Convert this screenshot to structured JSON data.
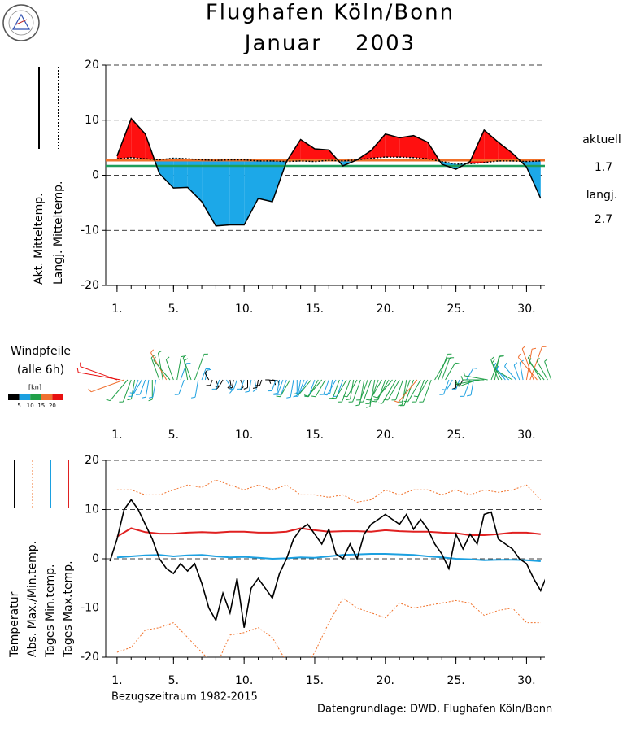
{
  "header": {
    "title": "Flughafen Köln/Bonn",
    "subtitle": "Januar    2003"
  },
  "footer": {
    "period": "Bezugszeitraum 1982-2015",
    "source": "Datengrundlage: DWD, Flughafen Köln/Bonn"
  },
  "chart_data": [
    {
      "type": "area_difference",
      "x": [
        1,
        2,
        3,
        4,
        5,
        6,
        7,
        8,
        9,
        10,
        11,
        12,
        13,
        14,
        15,
        16,
        17,
        18,
        19,
        20,
        21,
        22,
        23,
        24,
        25,
        26,
        27,
        28,
        29,
        30,
        31
      ],
      "series": [
        {
          "name": "Akt. Mitteltemp.",
          "color": "#000000",
          "values": [
            3.5,
            10.3,
            7.5,
            0.3,
            -2.3,
            -2.2,
            -4.8,
            -9.2,
            -9.0,
            -9.0,
            -4.2,
            -4.8,
            2.5,
            6.5,
            4.8,
            4.6,
            1.7,
            2.8,
            4.5,
            7.5,
            6.8,
            7.2,
            6.0,
            2.0,
            1.1,
            2.5,
            8.2,
            6.0,
            4.0,
            1.5,
            -4.2
          ]
        },
        {
          "name": "Langj. Mitteltemp.",
          "color": "#000000",
          "values": [
            3.0,
            3.2,
            3.0,
            2.8,
            3.1,
            3.0,
            2.8,
            2.7,
            2.8,
            2.8,
            2.6,
            2.6,
            2.5,
            2.6,
            2.5,
            2.7,
            2.6,
            2.8,
            3.1,
            3.3,
            3.3,
            3.2,
            3.0,
            2.5,
            2.0,
            2.1,
            2.3,
            2.6,
            2.6,
            2.5,
            2.6
          ]
        }
      ],
      "above_color": "#ff1010",
      "below_color": "#1ca8e8",
      "reference_lines": [
        {
          "name": "aktuell",
          "value": 1.7,
          "color": "#1f9e5a"
        },
        {
          "name": "langj.",
          "value": 2.7,
          "color": "#f07028"
        }
      ],
      "xlim": [
        0.2,
        31.3
      ],
      "xticks": [
        {
          "value": 1,
          "label": "1."
        },
        {
          "value": 5,
          "label": "5."
        },
        {
          "value": 10,
          "label": "10."
        },
        {
          "value": 15,
          "label": "15."
        },
        {
          "value": 20,
          "label": "20."
        },
        {
          "value": 25,
          "label": "25."
        },
        {
          "value": 30,
          "label": "30."
        }
      ],
      "ylim": [
        -20,
        20
      ],
      "yticks": [
        -20,
        -10,
        0,
        10,
        20
      ],
      "grid": true
    },
    {
      "type": "wind",
      "title": "Windpfeile",
      "subtitle": "(alle 6h)",
      "unit": "[kn]",
      "speed_bounds": [
        5,
        10,
        15,
        20
      ],
      "speed_colors": [
        "#000000",
        "#1ca0e0",
        "#20a048",
        "#f07030",
        "#e81010"
      ],
      "speed": [
        20,
        22,
        18,
        14,
        12,
        10,
        9,
        8,
        8,
        9,
        10,
        9,
        12,
        14,
        16,
        13,
        11,
        12,
        9,
        8,
        10,
        12,
        14,
        9,
        6,
        5,
        4,
        3,
        4,
        5,
        4,
        6,
        3,
        4,
        5,
        4,
        5,
        4,
        6,
        5,
        4,
        3,
        2,
        3,
        3,
        6,
        7,
        8,
        8,
        10,
        9,
        8,
        7,
        9,
        8,
        10,
        9,
        10,
        11,
        10,
        8,
        7,
        9,
        10,
        9,
        11,
        12,
        10,
        10,
        12,
        13,
        11,
        12,
        14,
        13,
        12,
        11,
        13,
        12,
        14,
        12,
        11,
        13,
        12,
        14,
        15,
        13,
        12,
        10,
        12,
        13,
        14,
        12,
        10,
        8,
        6,
        4,
        5,
        3,
        7,
        9,
        8,
        10,
        12,
        11,
        12,
        13,
        12,
        11,
        10,
        9,
        8,
        10,
        9,
        8,
        9,
        16,
        18,
        17,
        15,
        13,
        12,
        11,
        10
      ],
      "direction": [
        290,
        280,
        250,
        220,
        200,
        190,
        200,
        210,
        200,
        190,
        180,
        190,
        340,
        350,
        330,
        320,
        340,
        10,
        20,
        200,
        350,
        340,
        20,
        190,
        20,
        10,
        330,
        200,
        160,
        200,
        210,
        150,
        170,
        190,
        200,
        160,
        200,
        180,
        190,
        170,
        190,
        200,
        90,
        100,
        100,
        200,
        190,
        200,
        200,
        210,
        190,
        180,
        190,
        200,
        210,
        220,
        200,
        210,
        220,
        210,
        200,
        190,
        210,
        200,
        200,
        210,
        200,
        190,
        210,
        200,
        190,
        200,
        200,
        190,
        200,
        210,
        200,
        210,
        220,
        210,
        210,
        200,
        190,
        200,
        200,
        220,
        210,
        200,
        210,
        200,
        30,
        20,
        20,
        30,
        200,
        210,
        180,
        200,
        210,
        30,
        200,
        190,
        250,
        260,
        270,
        280,
        20,
        10,
        340,
        330,
        320,
        310,
        300,
        320,
        340,
        350,
        10,
        20,
        340,
        320,
        330,
        320,
        330,
        340
      ],
      "xlim": [
        0.2,
        31.3
      ],
      "xticks": [
        {
          "value": 1,
          "label": "1."
        },
        {
          "value": 5,
          "label": "5."
        },
        {
          "value": 10,
          "label": "10."
        },
        {
          "value": 15,
          "label": "15."
        },
        {
          "value": 20,
          "label": "20."
        },
        {
          "value": 25,
          "label": "25."
        },
        {
          "value": 30,
          "label": "30."
        }
      ]
    },
    {
      "type": "line",
      "x": [
        1,
        2,
        3,
        4,
        5,
        6,
        7,
        8,
        9,
        10,
        11,
        12,
        13,
        14,
        15,
        16,
        17,
        18,
        19,
        20,
        21,
        22,
        23,
        24,
        25,
        26,
        27,
        28,
        29,
        30,
        31
      ],
      "series": [
        {
          "name": "Temperatur",
          "color": "#000000",
          "x": [
            0.5,
            1,
            1.5,
            2,
            2.5,
            3,
            3.5,
            4,
            4.5,
            5,
            5.5,
            6,
            6.5,
            7,
            7.5,
            8,
            8.5,
            9,
            9.5,
            10,
            10.5,
            11,
            11.5,
            12,
            12.5,
            13,
            13.5,
            14,
            14.5,
            15,
            15.5,
            16,
            16.5,
            17,
            17.5,
            18,
            18.5,
            19,
            19.5,
            20,
            20.5,
            21,
            21.5,
            22,
            22.5,
            23,
            23.5,
            24,
            24.5,
            25,
            25.5,
            26,
            26.5,
            27,
            27.5,
            28,
            28.5,
            29,
            29.5,
            30,
            30.5,
            31,
            31.5
          ],
          "values": [
            -0.5,
            4,
            10,
            12,
            10,
            7,
            4,
            0,
            -2,
            -3,
            -1,
            -2.5,
            -1,
            -5,
            -10,
            -12.5,
            -7,
            -11,
            -4,
            -14,
            -6,
            -4,
            -6,
            -8,
            -3,
            0,
            4,
            6,
            7,
            5,
            3,
            6,
            1,
            0,
            3,
            0,
            5,
            7,
            8,
            9,
            8,
            7,
            9,
            6,
            8,
            6,
            3,
            1,
            -2,
            5,
            2,
            5,
            3,
            9,
            9.5,
            4,
            3,
            2,
            0,
            -1,
            -4,
            -6.5,
            -3
          ]
        },
        {
          "name": "Abs. Max./Min.temp.",
          "color": "#f07028",
          "max": [
            14,
            14,
            13,
            13,
            14,
            15,
            14.5,
            16,
            15,
            14,
            15,
            14,
            15,
            13,
            13,
            12.5,
            13,
            11.5,
            12,
            14,
            13,
            14,
            14,
            13,
            14,
            13,
            14,
            13.5,
            14,
            15,
            12
          ],
          "min": [
            -19,
            -18,
            -14.5,
            -14,
            -13,
            -16,
            -19,
            -22,
            -15.5,
            -15,
            -14,
            -16,
            -21,
            -23.5,
            -19,
            -13,
            -8,
            -10,
            -11,
            -12,
            -9,
            -10,
            -9.5,
            -9,
            -8.5,
            -9,
            -11.5,
            -10.5,
            -10,
            -13,
            -13
          ]
        },
        {
          "name": "Tages Min.temp.",
          "color": "#1ca0e0",
          "values": [
            0.3,
            0.5,
            0.7,
            0.8,
            0.5,
            0.7,
            0.8,
            0.5,
            0.3,
            0.4,
            0.2,
            0.0,
            0.1,
            0.3,
            0.2,
            0.5,
            0.8,
            0.9,
            1.0,
            1.0,
            0.9,
            0.8,
            0.5,
            0.3,
            0.0,
            -0.1,
            -0.3,
            -0.2,
            -0.2,
            -0.3,
            -0.5
          ]
        },
        {
          "name": "Tages Max.temp.",
          "color": "#e02020",
          "values": [
            4.5,
            6.2,
            5.4,
            5.1,
            5.1,
            5.3,
            5.4,
            5.3,
            5.5,
            5.5,
            5.3,
            5.3,
            5.5,
            6.2,
            5.8,
            5.5,
            5.6,
            5.6,
            5.5,
            5.8,
            5.6,
            5.5,
            5.5,
            5.3,
            5.2,
            4.8,
            4.8,
            5.0,
            5.3,
            5.3,
            5.0
          ]
        }
      ],
      "xlim": [
        0.2,
        31.3
      ],
      "xticks": [
        {
          "value": 1,
          "label": "1."
        },
        {
          "value": 5,
          "label": "5."
        },
        {
          "value": 10,
          "label": "10."
        },
        {
          "value": 15,
          "label": "15."
        },
        {
          "value": 20,
          "label": "20."
        },
        {
          "value": 25,
          "label": "25."
        },
        {
          "value": 30,
          "label": "30."
        }
      ],
      "ylim": [
        -20,
        20
      ],
      "yticks": [
        -20,
        -10,
        0,
        10,
        20
      ],
      "grid": true
    }
  ]
}
